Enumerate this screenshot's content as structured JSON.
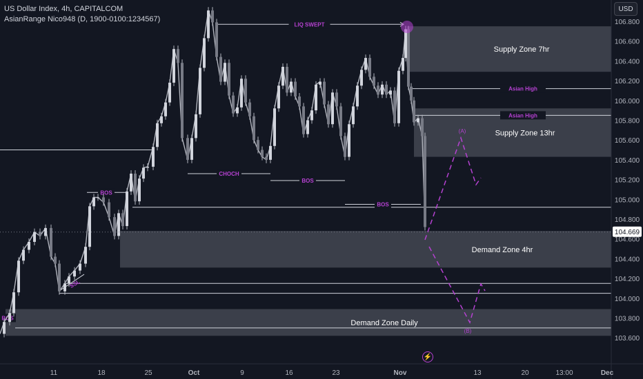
{
  "legend": {
    "symbol": "US Dollar Index, 4h, CAPITALCOM",
    "indicator": "AsianRange Nico948 (D, 1900-0100:1234567)"
  },
  "currency_button": "USD",
  "price_label": "104.669",
  "colors": {
    "background": "#131722",
    "candle": "#b2b5be",
    "zone_fill": "#5d606b",
    "level_line": "#d1d4dc",
    "accent": "#b541d1",
    "price_tag": "#ffffff"
  },
  "chart_data": {
    "type": "candlestick",
    "y_axis": {
      "min": 103.5,
      "max": 107.0,
      "ticks": [
        "106.800",
        "106.600",
        "106.400",
        "106.200",
        "106.000",
        "105.800",
        "105.600",
        "105.400",
        "105.200",
        "105.000",
        "104.800",
        "104.600",
        "104.400",
        "104.200",
        "104.000",
        "103.800",
        "103.600"
      ]
    },
    "x_axis": {
      "ticks": [
        "11",
        "18",
        "25",
        "Oct",
        "9",
        "16",
        "23",
        "Nov",
        "13",
        "20",
        "13:00",
        "Dec"
      ]
    },
    "current_price": 104.669,
    "approx_path": [
      [
        0,
        103.64
      ],
      [
        6,
        103.76
      ],
      [
        14,
        103.85
      ],
      [
        20,
        104.06
      ],
      [
        27,
        104.38
      ],
      [
        34,
        104.49
      ],
      [
        42,
        104.57
      ],
      [
        50,
        104.67
      ],
      [
        58,
        104.63
      ],
      [
        66,
        104.71
      ],
      [
        74,
        104.42
      ],
      [
        80,
        104.35
      ],
      [
        86,
        104.07
      ],
      [
        94,
        104.15
      ],
      [
        100,
        104.22
      ],
      [
        108,
        104.28
      ],
      [
        116,
        104.35
      ],
      [
        124,
        104.52
      ],
      [
        130,
        104.93
      ],
      [
        136,
        105.02
      ],
      [
        142,
        105.02
      ],
      [
        150,
        104.97
      ],
      [
        158,
        104.82
      ],
      [
        166,
        104.63
      ],
      [
        172,
        104.86
      ],
      [
        178,
        104.73
      ],
      [
        184,
        105.08
      ],
      [
        190,
        105.26
      ],
      [
        196,
        104.98
      ],
      [
        202,
        105.21
      ],
      [
        208,
        105.32
      ],
      [
        214,
        105.33
      ],
      [
        222,
        105.53
      ],
      [
        228,
        105.77
      ],
      [
        234,
        105.84
      ],
      [
        240,
        105.98
      ],
      [
        246,
        106.18
      ],
      [
        252,
        106.52
      ],
      [
        258,
        106.38
      ],
      [
        264,
        105.62
      ],
      [
        272,
        105.4
      ],
      [
        278,
        105.62
      ],
      [
        284,
        105.86
      ],
      [
        290,
        106.33
      ],
      [
        296,
        106.63
      ],
      [
        302,
        106.91
      ],
      [
        308,
        106.79
      ],
      [
        314,
        106.44
      ],
      [
        320,
        106.19
      ],
      [
        326,
        106.38
      ],
      [
        332,
        106.05
      ],
      [
        338,
        105.87
      ],
      [
        344,
        105.93
      ],
      [
        350,
        106.22
      ],
      [
        356,
        105.98
      ],
      [
        362,
        105.84
      ],
      [
        368,
        105.6
      ],
      [
        374,
        105.5
      ],
      [
        380,
        105.43
      ],
      [
        386,
        105.4
      ],
      [
        392,
        105.54
      ],
      [
        398,
        105.92
      ],
      [
        404,
        106.15
      ],
      [
        410,
        106.34
      ],
      [
        416,
        106.08
      ],
      [
        422,
        106.19
      ],
      [
        428,
        106.04
      ],
      [
        434,
        105.94
      ],
      [
        440,
        105.66
      ],
      [
        446,
        105.8
      ],
      [
        452,
        105.9
      ],
      [
        458,
        106.16
      ],
      [
        464,
        106.19
      ],
      [
        470,
        105.96
      ],
      [
        476,
        105.76
      ],
      [
        482,
        106.08
      ],
      [
        488,
        105.94
      ],
      [
        494,
        105.64
      ],
      [
        500,
        105.43
      ],
      [
        506,
        105.76
      ],
      [
        512,
        105.94
      ],
      [
        518,
        106.15
      ],
      [
        524,
        106.31
      ],
      [
        530,
        106.43
      ],
      [
        536,
        106.24
      ],
      [
        542,
        106.15
      ],
      [
        548,
        106.06
      ],
      [
        554,
        106.16
      ],
      [
        560,
        106.06
      ],
      [
        566,
        106.1
      ],
      [
        572,
        105.77
      ],
      [
        578,
        106.3
      ],
      [
        584,
        106.43
      ],
      [
        588,
        106.72
      ],
      [
        592,
        106.14
      ],
      [
        596,
        106.0
      ],
      [
        600,
        105.78
      ],
      [
        606,
        105.82
      ],
      [
        612,
        105.64
      ],
      [
        616,
        104.72
      ]
    ],
    "zones": [
      {
        "label": "Supply Zone 7hr",
        "top": 106.75,
        "bottom": 106.29,
        "x_start": 590
      },
      {
        "label": "Supply Zone 13hr",
        "top": 105.92,
        "bottom": 105.43,
        "x_start": 600
      },
      {
        "label": "Demand Zone 4hr",
        "top": 104.68,
        "bottom": 104.31,
        "x_start": 174
      },
      {
        "label": "Demand Zone Daily",
        "top": 103.89,
        "bottom": 103.62,
        "x_start": 8
      }
    ],
    "levels": [
      {
        "label": "LIQ SWEPT",
        "price": 106.77,
        "x1": 312,
        "x2": 585
      },
      {
        "label": "Asian High",
        "price": 106.12,
        "x1": 594,
        "x2": 886
      },
      {
        "label": "Asian High",
        "price": 105.85,
        "x1": 600,
        "x2": 886
      },
      {
        "label": "CHOCH",
        "price": 105.26,
        "x1": 272,
        "x2": 392
      },
      {
        "label": "BOS",
        "price": 105.19,
        "x1": 392,
        "x2": 500
      },
      {
        "label": "BOS",
        "price": 104.95,
        "x1": 500,
        "x2": 610
      },
      {
        "label": "BOS",
        "price": 105.07,
        "x1": 126,
        "x2": 182
      },
      {
        "label": "BOS",
        "price": 103.8,
        "x1": 0,
        "x2": 22
      },
      {
        "label": "SSL",
        "price": 104.2,
        "x1": 86,
        "x2": 122
      }
    ],
    "plain_lines": [
      {
        "price": 105.5,
        "x1": 0,
        "x2": 222
      },
      {
        "price": 104.92,
        "x1": 192,
        "x2": 886
      },
      {
        "price": 104.15,
        "x1": 96,
        "x2": 886
      },
      {
        "price": 104.05,
        "x1": 86,
        "x2": 886
      },
      {
        "price": 103.7,
        "x1": 22,
        "x2": 886
      }
    ],
    "projection": [
      {
        "label": "(A)",
        "price": 105.68
      },
      {
        "label": "(B)",
        "price": 103.82
      }
    ]
  }
}
